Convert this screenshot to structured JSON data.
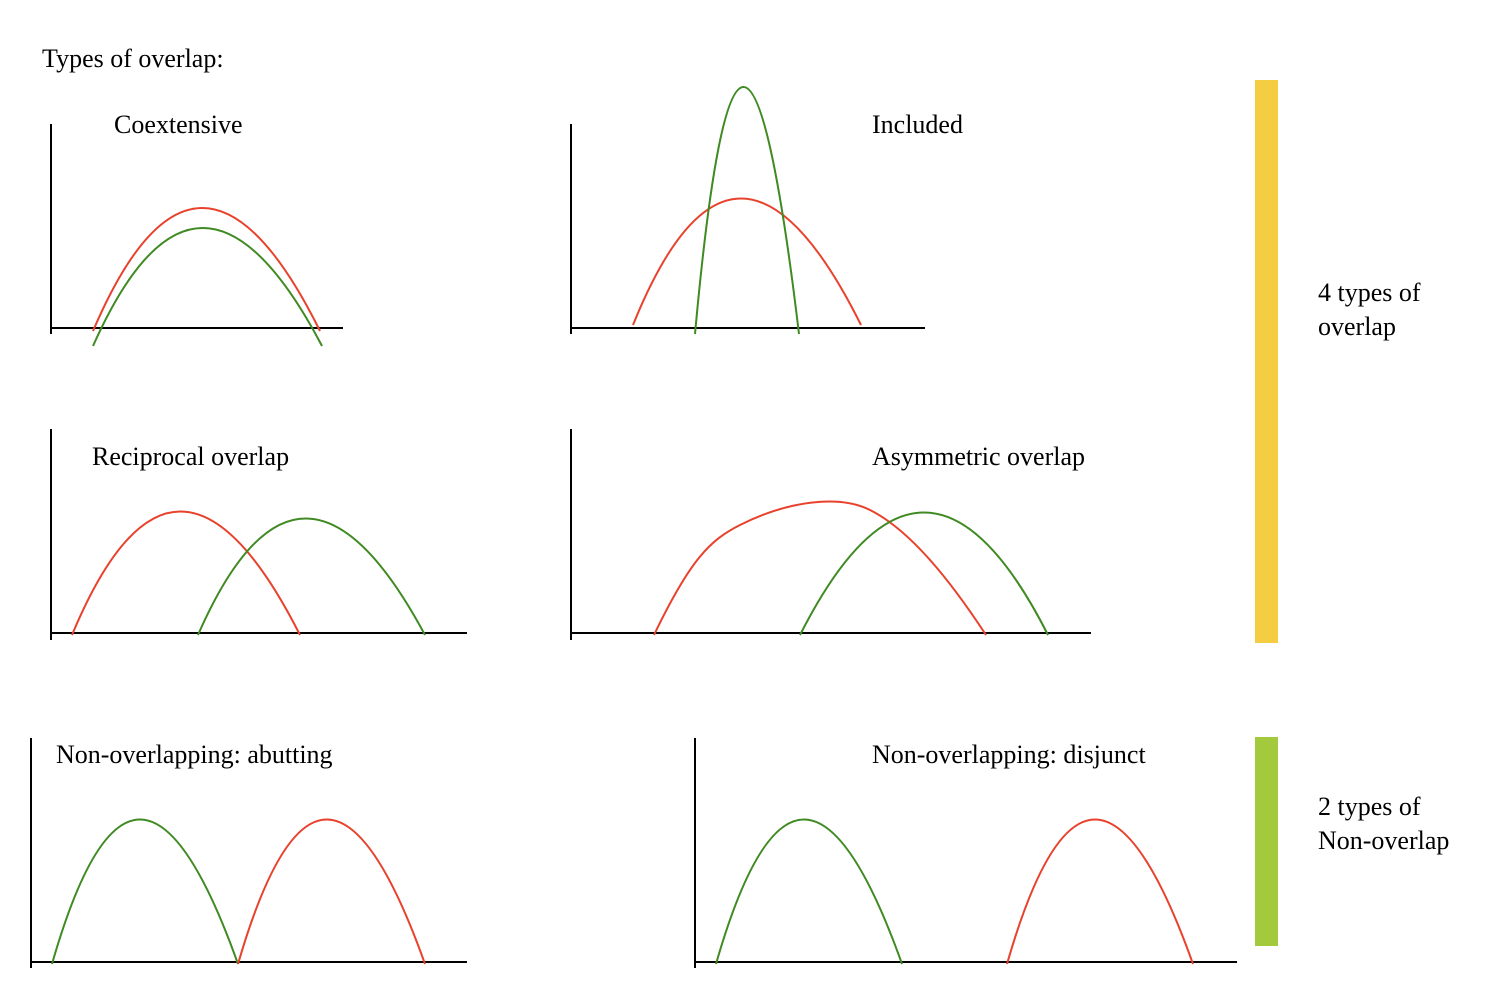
{
  "title": "Types of overlap:",
  "colors": {
    "red_curve": "#e8412c",
    "green_curve": "#3f8a22",
    "axis": "#000000",
    "overlap_bar": "#f5cd43",
    "nonoverlap_bar": "#a3c93d"
  },
  "panels": [
    {
      "id": "coextensive",
      "label": "Coextensive"
    },
    {
      "id": "included",
      "label": "Included"
    },
    {
      "id": "reciprocal",
      "label": "Reciprocal overlap"
    },
    {
      "id": "asymmetric",
      "label": "Asymmetric overlap"
    },
    {
      "id": "abutting",
      "label": "Non-overlapping: abutting"
    },
    {
      "id": "disjunct",
      "label": "Non-overlapping: disjunct"
    }
  ],
  "side_labels": {
    "overlap": {
      "line1": "4 types of",
      "line2": "overlap"
    },
    "nonoverlap": {
      "line1": "2 types of",
      "line2": "Non-overlap"
    }
  }
}
